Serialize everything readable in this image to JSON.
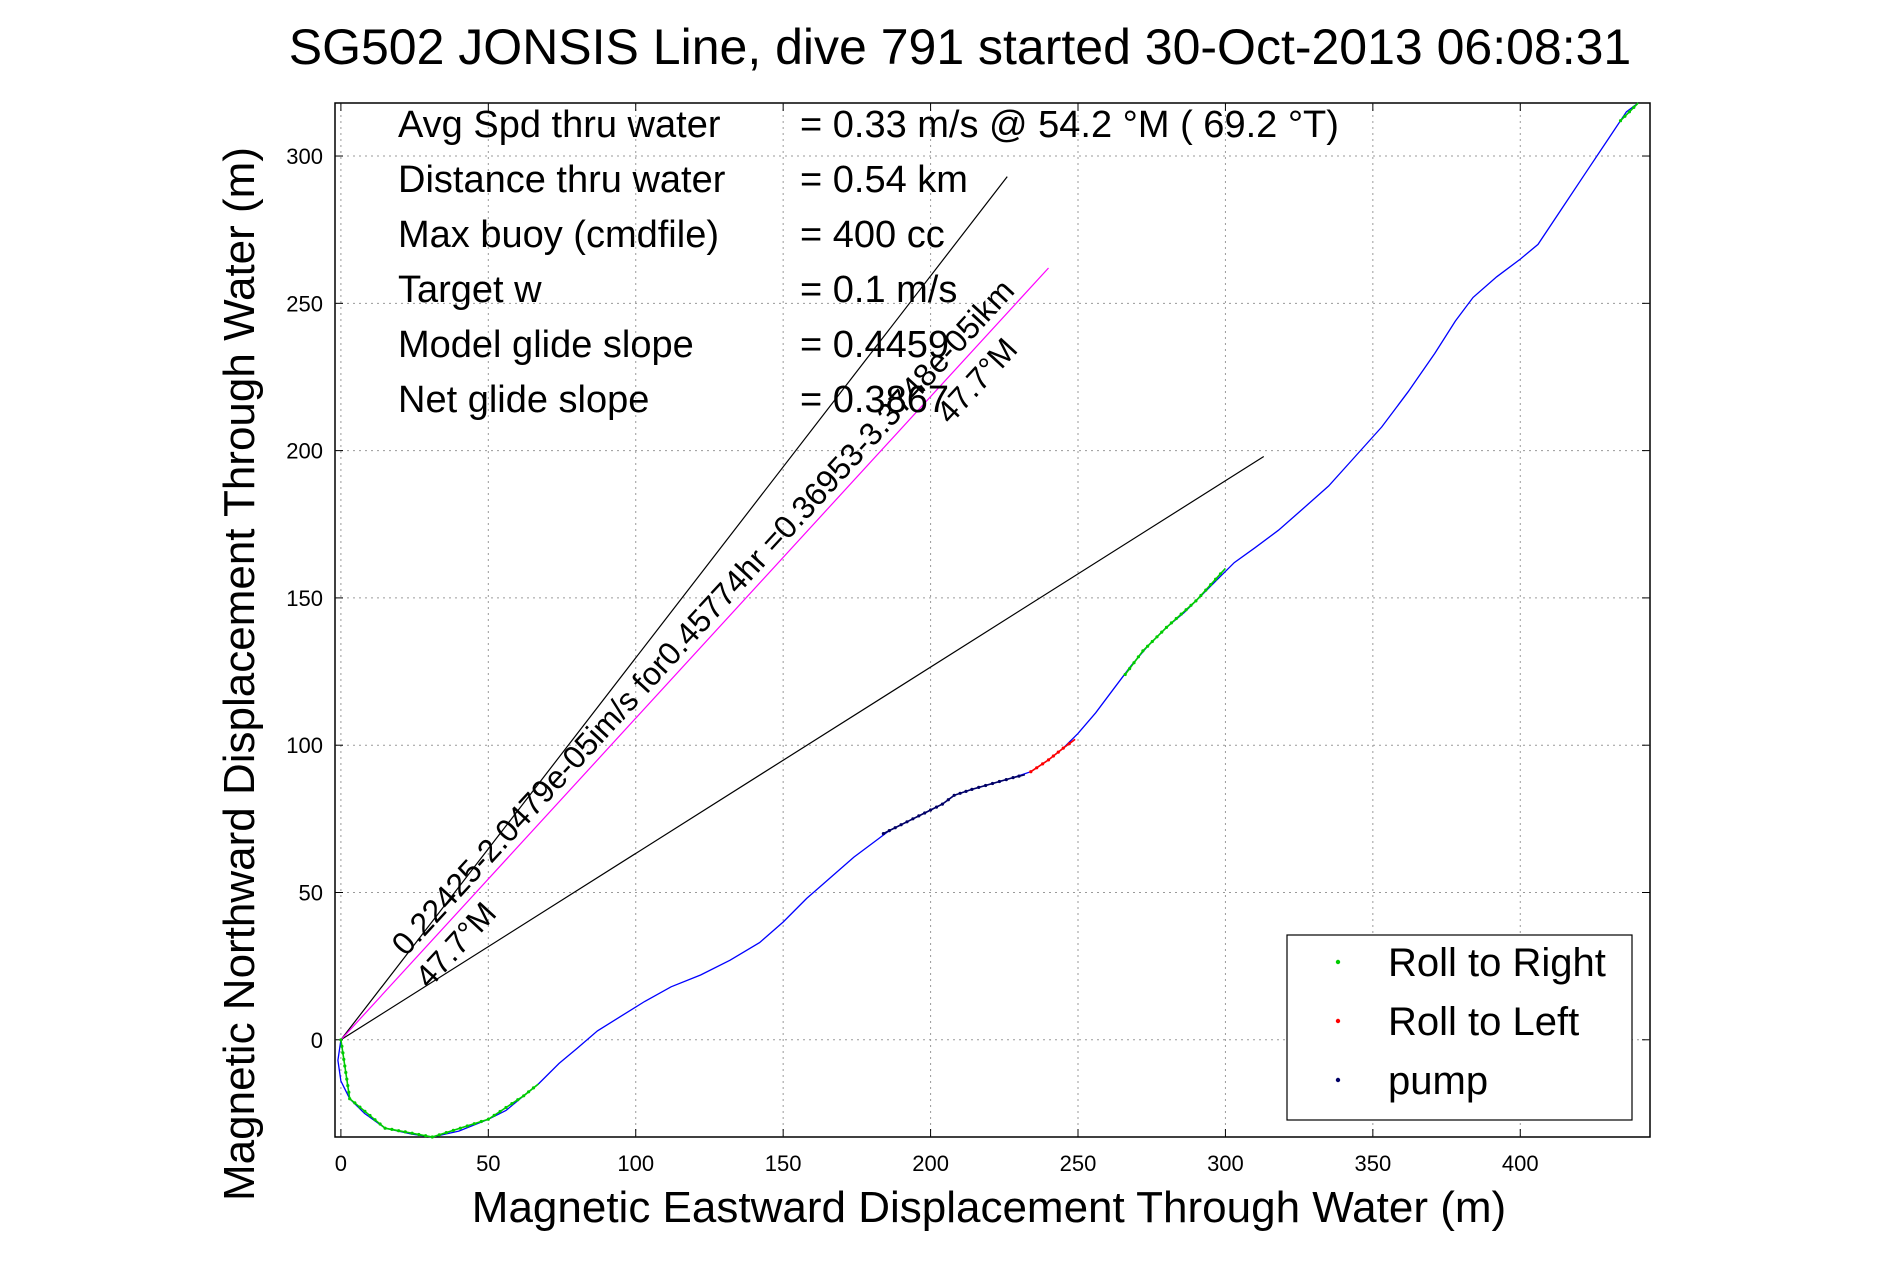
{
  "chart_data": {
    "type": "scatter",
    "title": "SG502 JONSIS Line, dive 791 started 30-Oct-2013 06:08:31",
    "xlabel": "Magnetic Eastward Displacement Through Water (m)",
    "ylabel": "Magnetic Northward Displacement Through Water (m)",
    "xlim": [
      -2,
      444
    ],
    "ylim": [
      -33,
      318
    ],
    "xticks": [
      0,
      50,
      100,
      150,
      200,
      250,
      300,
      350,
      400
    ],
    "yticks": [
      0,
      50,
      100,
      150,
      200,
      250,
      300
    ],
    "grid": true,
    "info_lines": [
      {
        "label": "Avg Spd thru water",
        "value": "=  0.33 m/s @  54.2 °M ( 69.2 °T)"
      },
      {
        "label": "Distance thru water",
        "value": "=  0.54 km"
      },
      {
        "label": "Max buoy (cmdfile)",
        "value": "= 400 cc"
      },
      {
        "label": "Target w",
        "value": "= 0.1 m/s"
      },
      {
        "label": "Model glide slope",
        "value": "= 0.4459"
      },
      {
        "label": "Net glide slope",
        "value": "= 0.3867"
      }
    ],
    "track": {
      "name": "track",
      "color": "#0000ff",
      "points": [
        [
          0,
          0
        ],
        [
          -1,
          -7
        ],
        [
          0,
          -14
        ],
        [
          3,
          -20
        ],
        [
          8,
          -25
        ],
        [
          15,
          -30
        ],
        [
          24,
          -32
        ],
        [
          31,
          -33
        ],
        [
          40,
          -31
        ],
        [
          50,
          -27
        ],
        [
          56,
          -24
        ],
        [
          62,
          -19
        ],
        [
          67,
          -15
        ],
        [
          74,
          -8
        ],
        [
          80,
          -3
        ],
        [
          87,
          3
        ],
        [
          95,
          8
        ],
        [
          103,
          13
        ],
        [
          112,
          18
        ],
        [
          122,
          22
        ],
        [
          132,
          27
        ],
        [
          142,
          33
        ],
        [
          150,
          40
        ],
        [
          158,
          48
        ],
        [
          166,
          55
        ],
        [
          174,
          62
        ],
        [
          182,
          68
        ],
        [
          186,
          71
        ],
        [
          192,
          74
        ],
        [
          198,
          77
        ],
        [
          204,
          80
        ],
        [
          208,
          83
        ],
        [
          214,
          85
        ],
        [
          221,
          87
        ],
        [
          228,
          89
        ],
        [
          234,
          91
        ],
        [
          240,
          95
        ],
        [
          245,
          99
        ],
        [
          250,
          104
        ],
        [
          256,
          111
        ],
        [
          262,
          119
        ],
        [
          268,
          127
        ],
        [
          274,
          134
        ],
        [
          280,
          140
        ],
        [
          286,
          145
        ],
        [
          292,
          151
        ],
        [
          298,
          157
        ],
        [
          303,
          162
        ],
        [
          310,
          167
        ],
        [
          318,
          173
        ],
        [
          326,
          180
        ],
        [
          335,
          188
        ],
        [
          344,
          198
        ],
        [
          353,
          208
        ],
        [
          362,
          220
        ],
        [
          371,
          233
        ],
        [
          378,
          244
        ],
        [
          384,
          252
        ],
        [
          392,
          259
        ],
        [
          400,
          265
        ],
        [
          406,
          270
        ],
        [
          414,
          282
        ],
        [
          422,
          294
        ],
        [
          430,
          306
        ],
        [
          436,
          315
        ],
        [
          440,
          318
        ]
      ]
    },
    "series": [
      {
        "name": "Roll to Right",
        "color": "#00cc00",
        "segments": [
          [
            [
              0,
              0
            ],
            [
              3,
              -20
            ],
            [
              15,
              -30
            ],
            [
              31,
              -33
            ],
            [
              50,
              -27
            ],
            [
              62,
              -19
            ],
            [
              67,
              -15
            ]
          ],
          [
            [
              266,
              124
            ],
            [
              272,
              132
            ],
            [
              280,
              140
            ],
            [
              290,
              149
            ],
            [
              300,
              160
            ]
          ],
          [
            [
              434,
              312
            ],
            [
              440,
              318
            ]
          ]
        ]
      },
      {
        "name": "Roll to Left",
        "color": "#ff0000",
        "segments": [
          [
            [
              234,
              91
            ],
            [
              240,
              95
            ],
            [
              245,
              99
            ],
            [
              249,
              102
            ]
          ]
        ]
      },
      {
        "name": "pump",
        "color": "#000066",
        "segments": [
          [
            [
              184,
              70
            ],
            [
              192,
              74
            ],
            [
              198,
              77
            ],
            [
              204,
              80
            ],
            [
              208,
              83
            ],
            [
              214,
              85
            ],
            [
              221,
              87
            ],
            [
              228,
              89
            ],
            [
              232,
              90
            ]
          ]
        ]
      }
    ],
    "reference_lines": [
      {
        "name": "upper",
        "from": [
          0,
          0
        ],
        "to": [
          226,
          293
        ],
        "color": "#000000"
      },
      {
        "name": "lower",
        "from": [
          0,
          0
        ],
        "to": [
          313,
          198
        ],
        "color": "#000000"
      }
    ],
    "fit_line": {
      "from": [
        0,
        0
      ],
      "to": [
        240,
        262
      ],
      "color": "#ff00ff"
    },
    "slope_labels": [
      {
        "line1": "0.22425-2.0479e-05im/s for0.45774hr =0.36953-3.3748e-05ikm",
        "line2": "47.7°M",
        "anchor": [
          22,
          28
        ]
      },
      {
        "line1": "47.7°M",
        "line2": "",
        "anchor": [
          30,
          17
        ]
      }
    ],
    "legend_position": "bottom-right"
  }
}
